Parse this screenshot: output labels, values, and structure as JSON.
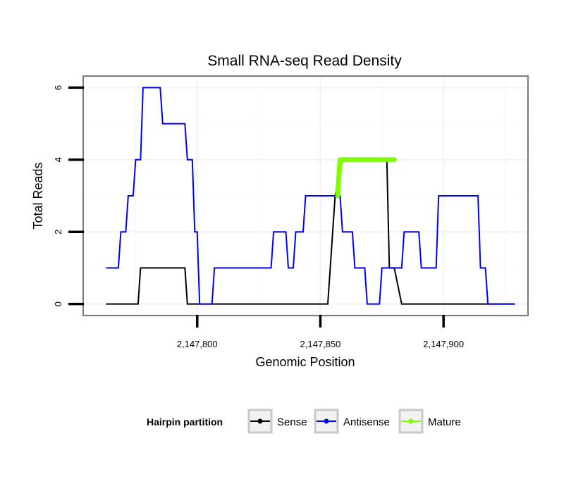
{
  "chart_data": {
    "type": "line",
    "title": "Small RNA-seq Read Density",
    "xlabel": "Genomic Position",
    "ylabel": "Total Reads",
    "xlim": [
      2147754,
      2147934
    ],
    "ylim": [
      -0.3,
      6.3
    ],
    "x_ticks": [
      2147800,
      2147850,
      2147900
    ],
    "x_tick_labels": [
      "2,147,800",
      "2,147,850",
      "2,147,900"
    ],
    "y_ticks": [
      0,
      2,
      4,
      6
    ],
    "y_tick_labels": [
      "0",
      "2",
      "4",
      "6"
    ],
    "grid": true,
    "legend": {
      "title": "Hairpin partition",
      "position": "bottom"
    },
    "series": [
      {
        "name": "Sense",
        "color": "#000000",
        "x": [
          2147763,
          2147776,
          2147777,
          2147795,
          2147796,
          2147853,
          2147856,
          2147859,
          2147877,
          2147878,
          2147880,
          2147883,
          2147929
        ],
        "y": [
          0,
          0,
          1,
          1,
          0,
          0,
          3,
          4,
          4,
          1,
          1,
          0,
          0
        ]
      },
      {
        "name": "Antisense",
        "color": "#0000ff",
        "x": [
          2147763,
          2147768,
          2147769,
          2147771,
          2147772,
          2147774,
          2147775,
          2147777,
          2147778,
          2147785,
          2147786,
          2147795,
          2147796,
          2147798,
          2147799,
          2147800,
          2147801,
          2147806,
          2147807,
          2147830,
          2147831,
          2147836,
          2147837,
          2147839,
          2147840,
          2147843,
          2147844,
          2147852,
          2147853,
          2147855,
          2147856,
          2147858,
          2147859,
          2147863,
          2147864,
          2147866,
          2147867,
          2147868,
          2147869,
          2147874,
          2147875,
          2147880,
          2147881,
          2147883,
          2147884,
          2147890,
          2147891,
          2147897,
          2147898,
          2147899,
          2147900,
          2147914,
          2147915,
          2147917,
          2147918,
          2147921,
          2147922,
          2147924,
          2147925,
          2147929
        ],
        "y": [
          1,
          1,
          2,
          2,
          3,
          3,
          4,
          4,
          6,
          6,
          5,
          5,
          4,
          4,
          2,
          2,
          0,
          0,
          1,
          1,
          2,
          2,
          1,
          1,
          2,
          2,
          3,
          3,
          3,
          3,
          3,
          3,
          2,
          2,
          1,
          1,
          1,
          1,
          0,
          0,
          1,
          1,
          1,
          1,
          2,
          2,
          1,
          1,
          3,
          3,
          3,
          3,
          1,
          1,
          0,
          0,
          0,
          0,
          0,
          0
        ]
      },
      {
        "name": "Mature",
        "color": "#7fff00",
        "x": [
          2147857,
          2147858,
          2147880
        ],
        "y": [
          3,
          4,
          4
        ]
      }
    ]
  }
}
